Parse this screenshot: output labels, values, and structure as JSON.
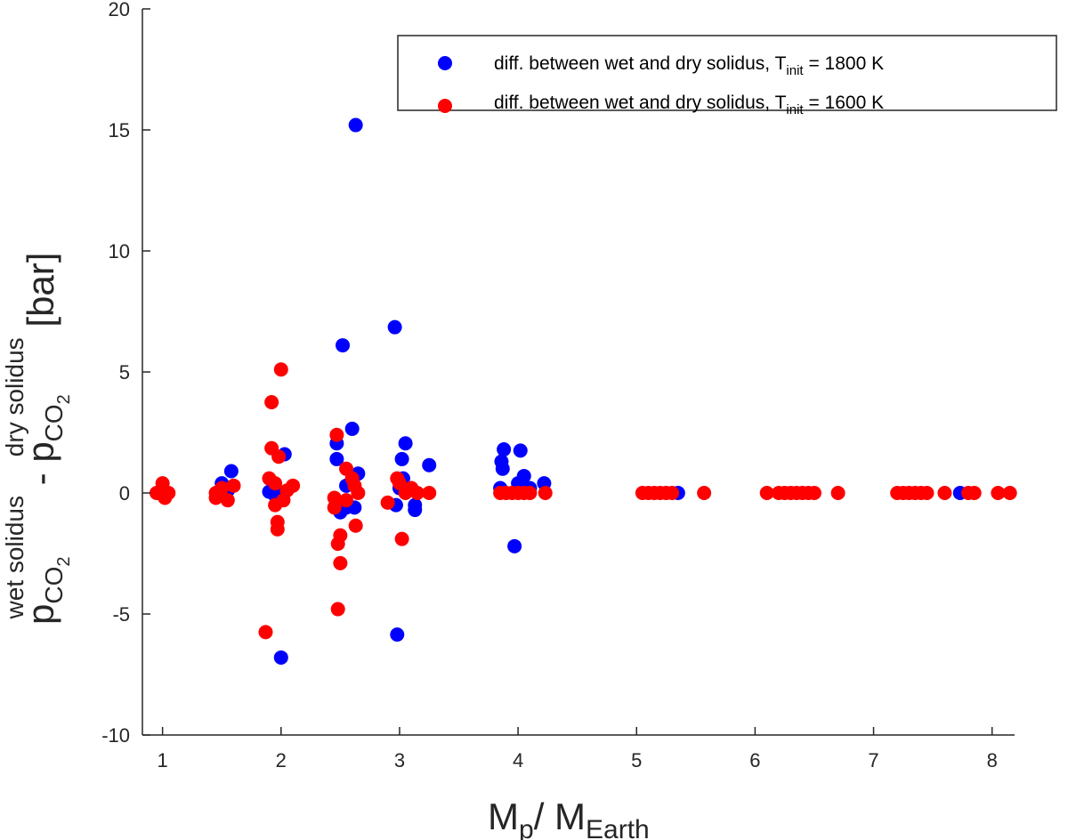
{
  "chart_data": {
    "type": "scatter",
    "xlabel": {
      "main": "M",
      "sub1": "p",
      "mid": "/ M",
      "sub2": "Earth"
    },
    "ylabel": {
      "p1": "p",
      "sub1": "CO",
      "sub1b": "2",
      "sup1": "wet solidus",
      "minus": " - p",
      "sub2": "CO",
      "sub2b": "2",
      "sup2": "dry solidus",
      "unit": " [bar]"
    },
    "xlim": [
      0.83,
      8.19
    ],
    "ylim": [
      -10,
      20
    ],
    "xticks": [
      1,
      2,
      3,
      4,
      5,
      6,
      7,
      8
    ],
    "yticks": [
      -10,
      -5,
      0,
      5,
      10,
      15,
      20
    ],
    "legend_position": "top-right",
    "series": [
      {
        "name": "diff. between wet and dry solidus, T_init = 1800 K",
        "legend": {
          "text": "diff. between wet and dry solidus, T",
          "sub": "init",
          "tail": " = 1800 K"
        },
        "color": "#0000ff",
        "points": [
          [
            2.63,
            15.2
          ],
          [
            2.52,
            6.1
          ],
          [
            2.96,
            6.85
          ],
          [
            2.6,
            2.65
          ],
          [
            2.47,
            2.05
          ],
          [
            2.47,
            1.4
          ],
          [
            3.05,
            2.05
          ],
          [
            3.02,
            1.4
          ],
          [
            3.25,
            1.15
          ],
          [
            2.03,
            1.6
          ],
          [
            1.58,
            0.9
          ],
          [
            2.0,
            -6.8
          ],
          [
            2.98,
            -5.85
          ],
          [
            3.97,
            -2.2
          ],
          [
            3.88,
            1.8
          ],
          [
            4.02,
            1.75
          ],
          [
            3.86,
            1.3
          ],
          [
            3.87,
            1.0
          ],
          [
            4.22,
            0.4
          ],
          [
            4.05,
            0.7
          ],
          [
            2.5,
            -0.8
          ],
          [
            3.13,
            -0.7
          ],
          [
            3.13,
            -0.5
          ],
          [
            2.97,
            -0.5
          ],
          [
            1.9,
            0.05
          ],
          [
            2.55,
            0.3
          ],
          [
            2.65,
            0.8
          ],
          [
            2.62,
            -0.6
          ],
          [
            1.5,
            0.4
          ],
          [
            1.0,
            0.1
          ],
          [
            0.97,
            0.0
          ],
          [
            5.35,
            0
          ],
          [
            7.73,
            0
          ],
          [
            3.85,
            0.2
          ],
          [
            4.0,
            0.4
          ],
          [
            4.1,
            0.2
          ],
          [
            3.03,
            0.6
          ],
          [
            2.02,
            0.0
          ],
          [
            1.95,
            -0.1
          ],
          [
            3.0,
            0.2
          ],
          [
            2.55,
            -0.6
          ],
          [
            1.55,
            0.1
          ]
        ]
      },
      {
        "name": "diff. between wet and dry solidus, T_init = 1600 K",
        "legend": {
          "text": "diff. between wet and dry solidus, T",
          "sub": "init",
          "tail": " = 1600 K"
        },
        "color": "#ff0000",
        "points": [
          [
            2.0,
            5.1
          ],
          [
            1.92,
            3.75
          ],
          [
            1.92,
            1.85
          ],
          [
            1.98,
            1.5
          ],
          [
            1.97,
            -1.2
          ],
          [
            1.97,
            -1.5
          ],
          [
            1.87,
            -5.75
          ],
          [
            2.47,
            2.4
          ],
          [
            2.5,
            -1.75
          ],
          [
            2.5,
            -2.9
          ],
          [
            2.48,
            -2.1
          ],
          [
            2.48,
            -4.8
          ],
          [
            2.63,
            -1.35
          ],
          [
            3.02,
            -1.9
          ],
          [
            2.98,
            0.6
          ],
          [
            2.55,
            1.0
          ],
          [
            2.6,
            0.6
          ],
          [
            2.62,
            0.3
          ],
          [
            2.45,
            -0.2
          ],
          [
            2.45,
            -0.6
          ],
          [
            2.55,
            -0.3
          ],
          [
            2.65,
            0.0
          ],
          [
            1.9,
            0.6
          ],
          [
            1.95,
            0.4
          ],
          [
            2.05,
            0.1
          ],
          [
            2.1,
            0.3
          ],
          [
            1.95,
            -0.5
          ],
          [
            2.02,
            -0.3
          ],
          [
            1.5,
            0.2
          ],
          [
            1.45,
            0.0
          ],
          [
            1.55,
            -0.3
          ],
          [
            1.6,
            0.3
          ],
          [
            1.45,
            -0.2
          ],
          [
            1.0,
            0.4
          ],
          [
            0.95,
            0.0
          ],
          [
            1.02,
            -0.2
          ],
          [
            1.05,
            0.0
          ],
          [
            2.9,
            -0.4
          ],
          [
            3.0,
            0.4
          ],
          [
            3.05,
            0.0
          ],
          [
            3.1,
            0.2
          ],
          [
            3.15,
            0.0
          ],
          [
            3.25,
            0.0
          ],
          [
            3.85,
            0
          ],
          [
            3.9,
            0
          ],
          [
            3.95,
            0
          ],
          [
            4.0,
            0
          ],
          [
            4.05,
            0
          ],
          [
            4.1,
            0
          ],
          [
            4.23,
            0
          ],
          [
            5.05,
            0
          ],
          [
            5.1,
            0
          ],
          [
            5.15,
            0
          ],
          [
            5.2,
            0
          ],
          [
            5.25,
            0
          ],
          [
            5.3,
            0
          ],
          [
            5.57,
            0
          ],
          [
            6.1,
            0
          ],
          [
            6.2,
            0
          ],
          [
            6.25,
            0
          ],
          [
            6.3,
            0
          ],
          [
            6.35,
            0
          ],
          [
            6.4,
            0
          ],
          [
            6.45,
            0
          ],
          [
            6.5,
            0
          ],
          [
            6.7,
            0
          ],
          [
            7.2,
            0
          ],
          [
            7.25,
            0
          ],
          [
            7.3,
            0
          ],
          [
            7.35,
            0
          ],
          [
            7.4,
            0
          ],
          [
            7.45,
            0
          ],
          [
            7.6,
            0
          ],
          [
            7.8,
            0
          ],
          [
            7.85,
            0
          ],
          [
            8.05,
            0
          ],
          [
            8.15,
            0
          ]
        ]
      }
    ]
  }
}
